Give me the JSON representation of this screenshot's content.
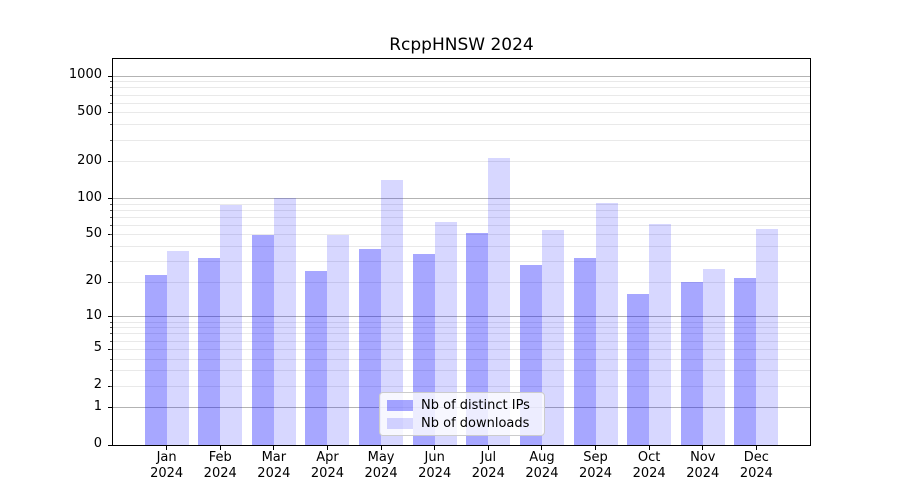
{
  "title": "RcppHNSW 2024",
  "chart_data": {
    "type": "bar",
    "title": "RcppHNSW 2024",
    "x_months": [
      "Jan",
      "Feb",
      "Mar",
      "Apr",
      "May",
      "Jun",
      "Jul",
      "Aug",
      "Sep",
      "Oct",
      "Nov",
      "Dec"
    ],
    "x_year": "2024",
    "series": [
      {
        "name": "Nb of distinct IPs",
        "color": "rgba(0,0,255,0.345)",
        "values": [
          23,
          32,
          50,
          25,
          38,
          35,
          52,
          28,
          32,
          16,
          20,
          22
        ]
      },
      {
        "name": "Nb of downloads",
        "color": "rgba(0,0,255,0.155)",
        "values": [
          37,
          88,
          101,
          50,
          141,
          64,
          216,
          55,
          91,
          62,
          26,
          56
        ]
      }
    ],
    "yscale": "log1p",
    "ylim": [
      0,
      1380
    ],
    "yticks": [
      0,
      1,
      2,
      5,
      10,
      20,
      50,
      100,
      200,
      500,
      1000
    ],
    "grid_major": [
      1,
      10,
      100,
      1000
    ],
    "grid_minor": [
      2,
      3,
      4,
      5,
      6,
      7,
      8,
      9,
      20,
      30,
      40,
      50,
      60,
      70,
      80,
      90,
      200,
      300,
      400,
      500,
      600,
      700,
      800,
      900
    ],
    "grid_on": true,
    "legend_position": "lower center",
    "colors": {
      "grid_major": "#b3b3b3",
      "grid_minor": "#e9e9e9",
      "spine": "#000000",
      "text": "#000000",
      "background": "#ffffff"
    }
  }
}
